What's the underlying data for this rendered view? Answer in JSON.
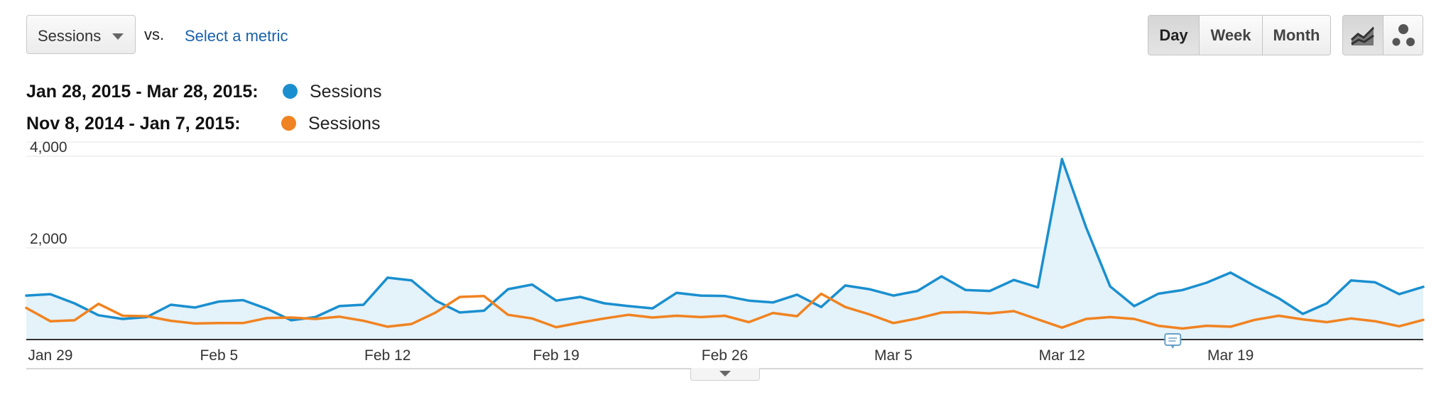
{
  "controls": {
    "metric_select": "Sessions",
    "vs_label": "vs.",
    "select_metric_link": "Select a metric",
    "granularity": [
      {
        "label": "Day",
        "active": true
      },
      {
        "label": "Week",
        "active": false
      },
      {
        "label": "Month",
        "active": false
      }
    ],
    "view_icons": [
      "line-chart-icon",
      "motion-chart-icon"
    ]
  },
  "colors": {
    "current": "#1a8fcf",
    "previous": "#f08321",
    "area_fill": "#e4f2f9"
  },
  "chart_data": {
    "type": "line",
    "legend": [
      {
        "range": "Jan 28, 2015 - Mar 28, 2015:",
        "name": "Sessions",
        "color": "#1a8fcf"
      },
      {
        "range": "Nov 8, 2014 - Jan 7, 2015:",
        "name": "Sessions",
        "color": "#f08321"
      }
    ],
    "ylim": [
      0,
      4000
    ],
    "yticks": [
      {
        "value": 4000,
        "label": "4,000"
      },
      {
        "value": 2000,
        "label": "2,000"
      }
    ],
    "xticks": [
      {
        "index": 1,
        "label": "Jan 29"
      },
      {
        "index": 8,
        "label": "Feb 5"
      },
      {
        "index": 15,
        "label": "Feb 12"
      },
      {
        "index": 22,
        "label": "Feb 19"
      },
      {
        "index": 29,
        "label": "Feb 26"
      },
      {
        "index": 36,
        "label": "Mar 5"
      },
      {
        "index": 43,
        "label": "Mar 12"
      },
      {
        "index": 50,
        "label": "Mar 19"
      }
    ],
    "series": [
      {
        "name": "Sessions",
        "period": "Jan 28, 2015 - Mar 28, 2015",
        "values": [
          960,
          990,
          790,
          530,
          450,
          490,
          760,
          700,
          830,
          860,
          670,
          420,
          490,
          730,
          760,
          1350,
          1290,
          850,
          590,
          630,
          1100,
          1200,
          850,
          930,
          790,
          730,
          680,
          1020,
          960,
          950,
          850,
          810,
          980,
          710,
          1180,
          1100,
          960,
          1060,
          1380,
          1080,
          1060,
          1300,
          1140,
          3940,
          2450,
          1160,
          730,
          1000,
          1080,
          1240,
          1460,
          1170,
          900,
          560,
          790,
          1290,
          1250,
          990,
          1150
        ]
      },
      {
        "name": "Sessions",
        "period": "Nov 8, 2014 - Jan 7, 2015",
        "values": [
          690,
          400,
          420,
          780,
          520,
          510,
          410,
          350,
          360,
          360,
          470,
          480,
          450,
          500,
          410,
          280,
          340,
          590,
          930,
          950,
          540,
          460,
          270,
          370,
          460,
          540,
          480,
          520,
          490,
          520,
          380,
          580,
          510,
          1000,
          710,
          550,
          360,
          460,
          590,
          600,
          570,
          620,
          440,
          260,
          450,
          490,
          450,
          300,
          240,
          300,
          280,
          430,
          520,
          440,
          380,
          460,
          400,
          290,
          430
        ]
      }
    ],
    "annotation_icon": "annotation-icon"
  },
  "footer": {
    "expand_icon": "expand-chevron-icon"
  }
}
